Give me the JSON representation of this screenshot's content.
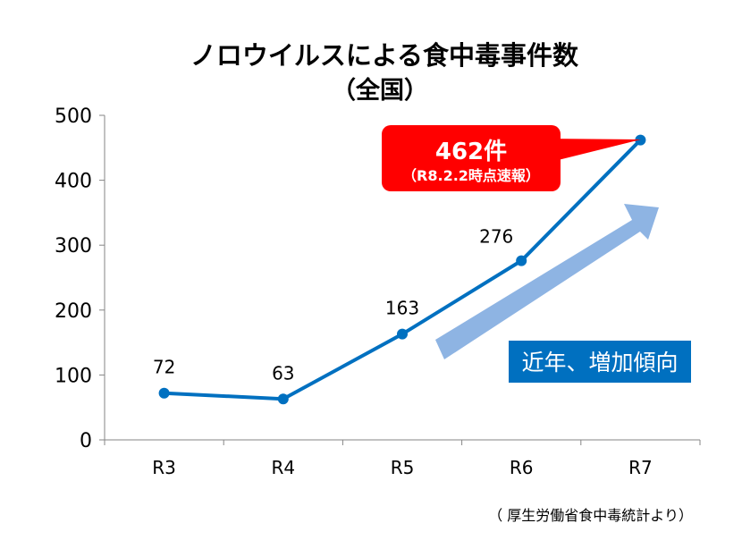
{
  "chart_data": {
    "type": "line",
    "title": "ノロウイルスによる食中毒事件数",
    "subtitle": "（全国）",
    "categories": [
      "R3",
      "R4",
      "R5",
      "R6",
      "R7"
    ],
    "values": [
      72,
      63,
      163,
      276,
      462
    ],
    "data_labels": [
      "72",
      "63",
      "163",
      "276",
      ""
    ],
    "ylim": [
      0,
      500
    ],
    "yticks": [
      "0",
      "100",
      "200",
      "300",
      "400",
      "500"
    ],
    "grid": false,
    "line_color": "#0070C0",
    "callout": {
      "value": "462件",
      "note": "（R8.2.2時点速報）",
      "color": "#FF0000"
    },
    "trend_label": "近年、増加傾向",
    "trend_label_color": "#0070C0",
    "trend_arrow_color": "#8EB4E3",
    "source": "（ 厚生労働省食中毒統計より）"
  }
}
